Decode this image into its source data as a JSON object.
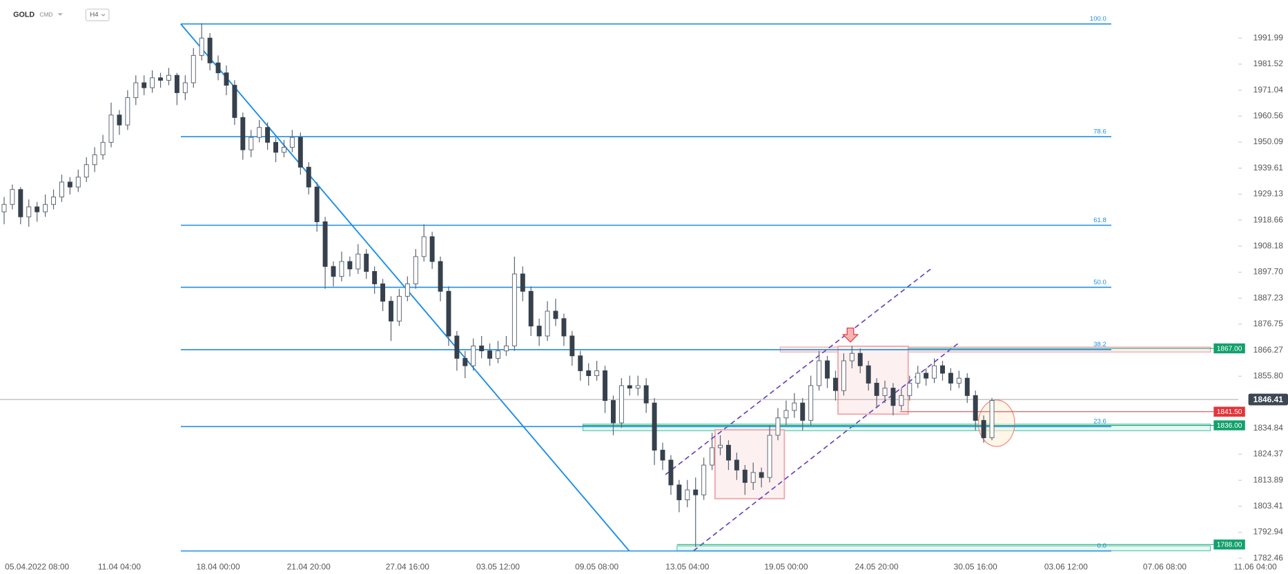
{
  "header": {
    "symbol": "GOLD",
    "market": "CMD",
    "timeframe": "H4"
  },
  "chart_data": {
    "type": "candlestick",
    "colors": {
      "up": "#ffffff",
      "down": "#36414d",
      "wick": "#5a6470",
      "fib": "#1e8ee6"
    },
    "ylim": [
      1776.12,
      2007.34
    ],
    "yticks": [
      1991.99,
      1981.52,
      1971.04,
      1960.56,
      1950.09,
      1939.61,
      1929.13,
      1918.66,
      {
        "value": 1908.18,
        "label": "1908.18"
      },
      {
        "value": 1897.7,
        "label": "1897.70"
      },
      1887.23,
      1876.75,
      1866.27,
      {
        "value": 1855.8,
        "label": "1855.80"
      },
      1834.84,
      1824.37,
      1813.89,
      1803.41,
      1792.94,
      1782.46
    ],
    "categories": [
      null,
      null,
      null,
      null,
      "05.04.2022 08:00",
      null,
      null,
      null,
      null,
      null,
      null,
      null,
      null,
      null,
      "11.04 04:00",
      null,
      null,
      null,
      null,
      null,
      null,
      null,
      null,
      null,
      null,
      null,
      "18.04 00:00",
      null,
      null,
      null,
      null,
      null,
      null,
      null,
      null,
      null,
      null,
      "21.04 20:00",
      null,
      null,
      null,
      null,
      null,
      null,
      null,
      null,
      null,
      null,
      null,
      "27.04 16:00",
      null,
      null,
      null,
      null,
      null,
      null,
      null,
      null,
      null,
      null,
      "03.05 12:00",
      null,
      null,
      null,
      null,
      null,
      null,
      null,
      null,
      null,
      null,
      null,
      "09.05 08:00",
      null,
      null,
      null,
      null,
      null,
      null,
      null,
      null,
      null,
      null,
      "13.05 04:00",
      null,
      null,
      null,
      null,
      null,
      null,
      null,
      null,
      null,
      null,
      null,
      "19.05 00:00",
      null,
      null,
      null,
      null,
      null,
      null,
      null,
      null,
      null,
      null,
      "24.05 20:00",
      null,
      null,
      null,
      null,
      null,
      null,
      null,
      null,
      null,
      null,
      null,
      "30.05 16:00",
      null,
      null,
      null,
      null,
      null,
      null,
      null,
      null,
      null,
      null,
      "03.06 12:00",
      null,
      null,
      null,
      null,
      null,
      null,
      null,
      null,
      null,
      null,
      null,
      "07.06 08:00",
      null,
      null,
      null,
      null,
      null,
      null,
      null,
      null,
      null,
      null,
      "11.06 04:00"
    ],
    "candles": [
      [
        1922,
        1928,
        1917,
        1925
      ],
      [
        1925,
        1933,
        1923,
        1931
      ],
      [
        1931,
        1932,
        1917,
        1920
      ],
      [
        1920,
        1927,
        1916,
        1924
      ],
      [
        1924,
        1926,
        1918,
        1922
      ],
      [
        1922,
        1929,
        1920,
        1925
      ],
      [
        1925,
        1931,
        1923,
        1928
      ],
      [
        1928,
        1937,
        1926,
        1934
      ],
      [
        1934,
        1936,
        1929,
        1932
      ],
      [
        1932,
        1939,
        1930,
        1936
      ],
      [
        1936,
        1944,
        1934,
        1941
      ],
      [
        1941,
        1948,
        1938,
        1945
      ],
      [
        1945,
        1953,
        1943,
        1950
      ],
      [
        1950,
        1966,
        1948,
        1961
      ],
      [
        1961,
        1963,
        1953,
        1957
      ],
      [
        1957,
        1971,
        1955,
        1968
      ],
      [
        1968,
        1977,
        1965,
        1974
      ],
      [
        1974,
        1977,
        1969,
        1972
      ],
      [
        1972,
        1979,
        1970,
        1976
      ],
      [
        1976,
        1978,
        1972,
        1975
      ],
      [
        1975,
        1980,
        1973,
        1977
      ],
      [
        1977,
        1978,
        1965,
        1970
      ],
      [
        1970,
        1977,
        1967,
        1974
      ],
      [
        1974,
        1988,
        1972,
        1985
      ],
      [
        1985,
        1998,
        1983,
        1992
      ],
      [
        1992,
        1994,
        1979,
        1982
      ],
      [
        1982,
        1985,
        1975,
        1978
      ],
      [
        1978,
        1981,
        1969,
        1973
      ],
      [
        1973,
        1975,
        1957,
        1960
      ],
      [
        1960,
        1962,
        1943,
        1947
      ],
      [
        1947,
        1955,
        1944,
        1952
      ],
      [
        1952,
        1959,
        1950,
        1956
      ],
      [
        1956,
        1958,
        1947,
        1950
      ],
      [
        1950,
        1952,
        1942,
        1946
      ],
      [
        1946,
        1951,
        1944,
        1948
      ],
      [
        1948,
        1955,
        1946,
        1952
      ],
      [
        1952,
        1954,
        1937,
        1940
      ],
      [
        1940,
        1942,
        1929,
        1932
      ],
      [
        1932,
        1934,
        1914,
        1918
      ],
      [
        1918,
        1920,
        1891,
        1900
      ],
      [
        1900,
        1902,
        1892,
        1896
      ],
      [
        1896,
        1906,
        1894,
        1902
      ],
      [
        1902,
        1904,
        1896,
        1899
      ],
      [
        1899,
        1909,
        1897,
        1905
      ],
      [
        1905,
        1907,
        1895,
        1898
      ],
      [
        1898,
        1900,
        1889,
        1893
      ],
      [
        1893,
        1895,
        1882,
        1886
      ],
      [
        1886,
        1888,
        1870,
        1878
      ],
      [
        1878,
        1891,
        1876,
        1888
      ],
      [
        1888,
        1896,
        1886,
        1893
      ],
      [
        1893,
        1907,
        1891,
        1904
      ],
      [
        1904,
        1917,
        1902,
        1912
      ],
      [
        1912,
        1914,
        1899,
        1902
      ],
      [
        1902,
        1904,
        1886,
        1890
      ],
      [
        1890,
        1892,
        1868,
        1872
      ],
      [
        1872,
        1874,
        1858,
        1863
      ],
      [
        1863,
        1866,
        1855,
        1860
      ],
      [
        1860,
        1871,
        1858,
        1868
      ],
      [
        1868,
        1872,
        1863,
        1866
      ],
      [
        1866,
        1869,
        1860,
        1863
      ],
      [
        1863,
        1870,
        1861,
        1866
      ],
      [
        1866,
        1872,
        1864,
        1868
      ],
      [
        1868,
        1904,
        1866,
        1897
      ],
      [
        1897,
        1900,
        1886,
        1890
      ],
      [
        1890,
        1892,
        1872,
        1876
      ],
      [
        1876,
        1879,
        1868,
        1872
      ],
      [
        1872,
        1886,
        1870,
        1882
      ],
      [
        1882,
        1887,
        1876,
        1879
      ],
      [
        1879,
        1881,
        1868,
        1872
      ],
      [
        1872,
        1874,
        1860,
        1864
      ],
      [
        1864,
        1866,
        1854,
        1858
      ],
      [
        1858,
        1861,
        1852,
        1856
      ],
      [
        1856,
        1862,
        1854,
        1858
      ],
      [
        1858,
        1860,
        1841,
        1846
      ],
      [
        1846,
        1848,
        1832,
        1837
      ],
      [
        1837,
        1855,
        1835,
        1852
      ],
      [
        1852,
        1856,
        1848,
        1851
      ],
      [
        1851,
        1856,
        1848,
        1852
      ],
      [
        1852,
        1855,
        1841,
        1845
      ],
      [
        1845,
        1847,
        1820,
        1826
      ],
      [
        1826,
        1829,
        1818,
        1822
      ],
      [
        1822,
        1824,
        1808,
        1812
      ],
      [
        1812,
        1814,
        1801,
        1806
      ],
      [
        1806,
        1814,
        1803,
        1810
      ],
      [
        1810,
        1815,
        1787,
        1808
      ],
      [
        1808,
        1823,
        1806,
        1820
      ],
      [
        1820,
        1833,
        1818,
        1827
      ],
      [
        1827,
        1832,
        1824,
        1828
      ],
      [
        1828,
        1830,
        1818,
        1822
      ],
      [
        1822,
        1825,
        1814,
        1818
      ],
      [
        1818,
        1820,
        1808,
        1813
      ],
      [
        1813,
        1821,
        1810,
        1817
      ],
      [
        1817,
        1819,
        1811,
        1815
      ],
      [
        1815,
        1836,
        1813,
        1832
      ],
      [
        1832,
        1843,
        1830,
        1839
      ],
      [
        1839,
        1846,
        1836,
        1842
      ],
      [
        1842,
        1849,
        1839,
        1845
      ],
      [
        1845,
        1847,
        1834,
        1838
      ],
      [
        1838,
        1856,
        1836,
        1852
      ],
      [
        1852,
        1866,
        1850,
        1862
      ],
      [
        1862,
        1864,
        1851,
        1855
      ],
      [
        1855,
        1858,
        1846,
        1850
      ],
      [
        1850,
        1865,
        1848,
        1862
      ],
      [
        1862,
        1868,
        1859,
        1865
      ],
      [
        1865,
        1867,
        1857,
        1860
      ],
      [
        1860,
        1862,
        1850,
        1853
      ],
      [
        1853,
        1855,
        1843,
        1848
      ],
      [
        1848,
        1854,
        1845,
        1851
      ],
      [
        1851,
        1853,
        1840,
        1844
      ],
      [
        1844,
        1851,
        1842,
        1848
      ],
      [
        1848,
        1856,
        1846,
        1853
      ],
      [
        1853,
        1860,
        1851,
        1857
      ],
      [
        1857,
        1859,
        1852,
        1855
      ],
      [
        1855,
        1863,
        1853,
        1860
      ],
      [
        1860,
        1862,
        1854,
        1857
      ],
      [
        1857,
        1859,
        1850,
        1853
      ],
      [
        1853,
        1858,
        1851,
        1855
      ],
      [
        1855,
        1857,
        1845,
        1848
      ],
      [
        1848,
        1850,
        1834,
        1838
      ],
      [
        1838,
        1840,
        1829,
        1831
      ],
      [
        1831,
        1847,
        1830,
        1846
      ],
      null,
      null,
      null,
      null,
      null,
      null,
      null,
      null,
      null,
      null,
      null,
      null,
      null,
      null,
      null,
      null,
      null,
      null,
      null,
      null,
      null,
      null,
      null,
      null,
      null,
      null,
      null,
      null,
      null,
      null,
      null,
      null
    ],
    "fibonacci": [
      {
        "label": "100.0",
        "value": 1997.7
      },
      {
        "label": "78.6",
        "value": 1952.3
      },
      {
        "label": "61.8",
        "value": 1916.6
      },
      {
        "label": "50.0",
        "value": 1891.6
      },
      {
        "label": "38.2",
        "value": 1866.5
      },
      {
        "label": "23.6",
        "value": 1835.5
      },
      {
        "label": "0.0",
        "value": 1785.4
      }
    ],
    "levels": [
      {
        "value": 1867,
        "label": "1867.00",
        "color": "#12a16b"
      },
      {
        "value": 1841.5,
        "label": "1841.50",
        "color": "#e2353b"
      },
      {
        "value": 1836,
        "label": "1836.00",
        "color": "#12a16b"
      },
      {
        "value": 1788,
        "label": "1788.00",
        "color": "#12a16b"
      }
    ],
    "current_price": 1846.41
  }
}
